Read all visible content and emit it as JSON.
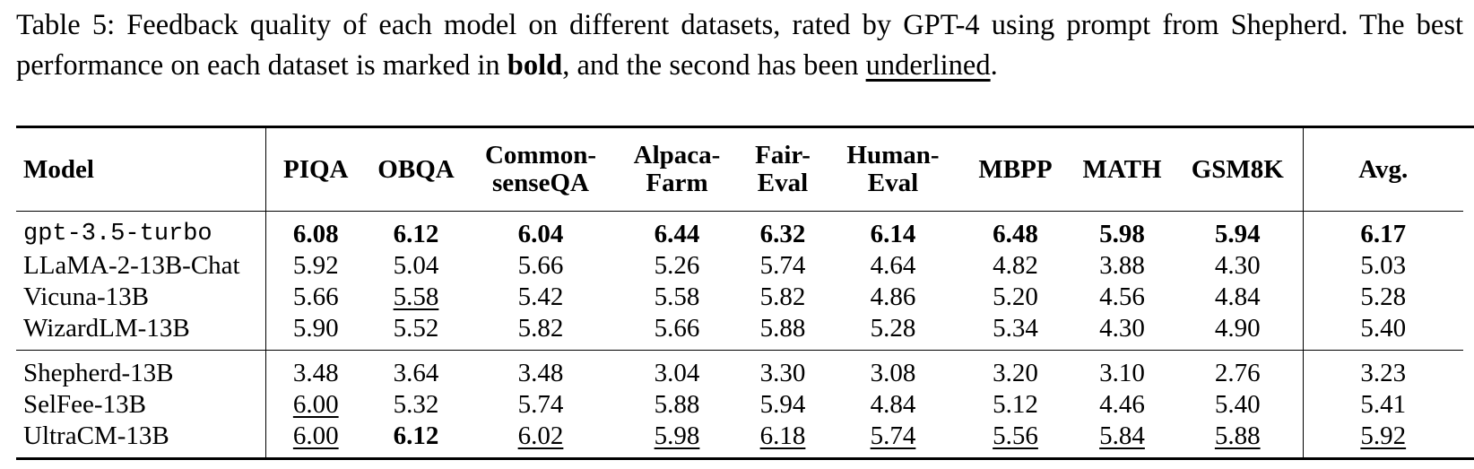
{
  "caption": {
    "part1": "Table 5: Feedback quality of each model on different datasets, rated by GPT-4 using prompt from Shepherd.  The best performance on each dataset is marked in ",
    "bold_word": "bold",
    "part2": ", and the second has been ",
    "underline_word": "underlined",
    "part3": "."
  },
  "header": {
    "model": "Model",
    "cols": [
      {
        "l1": "PIQA",
        "l2": ""
      },
      {
        "l1": "OBQA",
        "l2": ""
      },
      {
        "l1": "Common-",
        "l2": "senseQA"
      },
      {
        "l1": "Alpaca-",
        "l2": "Farm"
      },
      {
        "l1": "Fair-",
        "l2": "Eval"
      },
      {
        "l1": "Human-",
        "l2": "Eval"
      },
      {
        "l1": "MBPP",
        "l2": ""
      },
      {
        "l1": "MATH",
        "l2": ""
      },
      {
        "l1": "GSM8K",
        "l2": ""
      }
    ],
    "avg": "Avg."
  },
  "rows": [
    {
      "model": "gpt-3.5-turbo",
      "values": [
        "6.08",
        "6.12",
        "6.04",
        "6.44",
        "6.32",
        "6.14",
        "6.48",
        "5.98",
        "5.94"
      ],
      "avg": "6.17"
    },
    {
      "model": "LLaMA-2-13B-Chat",
      "values": [
        "5.92",
        "5.04",
        "5.66",
        "5.26",
        "5.74",
        "4.64",
        "4.82",
        "3.88",
        "4.30"
      ],
      "avg": "5.03"
    },
    {
      "model": "Vicuna-13B",
      "values": [
        "5.66",
        "5.58",
        "5.42",
        "5.58",
        "5.82",
        "4.86",
        "5.20",
        "4.56",
        "4.84"
      ],
      "avg": "5.28"
    },
    {
      "model": "WizardLM-13B",
      "values": [
        "5.90",
        "5.52",
        "5.82",
        "5.66",
        "5.88",
        "5.28",
        "5.34",
        "4.30",
        "4.90"
      ],
      "avg": "5.40"
    },
    {
      "model": "Shepherd-13B",
      "values": [
        "3.48",
        "3.64",
        "3.48",
        "3.04",
        "3.30",
        "3.08",
        "3.20",
        "3.10",
        "2.76"
      ],
      "avg": "3.23"
    },
    {
      "model": "SelFee-13B",
      "values": [
        "6.00",
        "5.32",
        "5.74",
        "5.88",
        "5.94",
        "4.84",
        "5.12",
        "4.46",
        "5.40"
      ],
      "avg": "5.41"
    },
    {
      "model": "UltraCM-13B",
      "values": [
        "6.00",
        "6.12",
        "6.02",
        "5.98",
        "6.18",
        "5.74",
        "5.56",
        "5.84",
        "5.88"
      ],
      "avg": "5.92"
    }
  ]
}
